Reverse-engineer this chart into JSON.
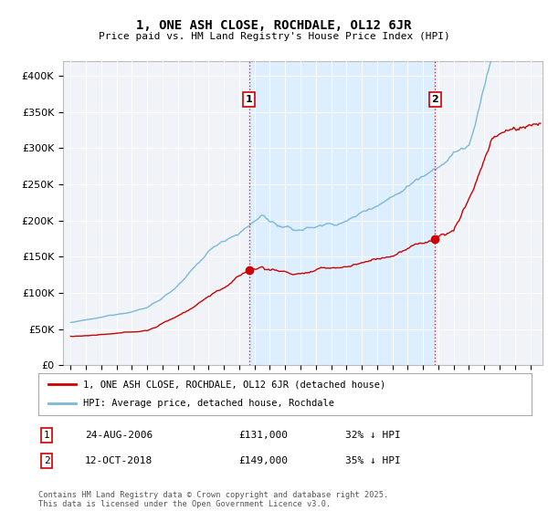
{
  "title": "1, ONE ASH CLOSE, ROCHDALE, OL12 6JR",
  "subtitle": "Price paid vs. HM Land Registry's House Price Index (HPI)",
  "ylabel_ticks": [
    "£0",
    "£50K",
    "£100K",
    "£150K",
    "£200K",
    "£250K",
    "£300K",
    "£350K",
    "£400K"
  ],
  "ytick_values": [
    0,
    50000,
    100000,
    150000,
    200000,
    250000,
    300000,
    350000,
    400000
  ],
  "ylim": [
    0,
    420000
  ],
  "sale1_x": 2006.65,
  "sale1_date": "24-AUG-2006",
  "sale1_price": "£131,000",
  "sale1_pct": "32% ↓ HPI",
  "sale2_x": 2018.78,
  "sale2_date": "12-OCT-2018",
  "sale2_price": "£149,000",
  "sale2_pct": "35% ↓ HPI",
  "hpi_color": "#7ab8d9",
  "sale_color": "#cc0000",
  "vline_color": "#cc0000",
  "shade_color": "#ddeeff",
  "background_color": "#f0f4f8",
  "grid_color": "#ffffff",
  "legend_label_sale": "1, ONE ASH CLOSE, ROCHDALE, OL12 6JR (detached house)",
  "legend_label_hpi": "HPI: Average price, detached house, Rochdale",
  "footer": "Contains HM Land Registry data © Crown copyright and database right 2025.\nThis data is licensed under the Open Government Licence v3.0.",
  "xlim_start": 1994.5,
  "xlim_end": 2025.8
}
